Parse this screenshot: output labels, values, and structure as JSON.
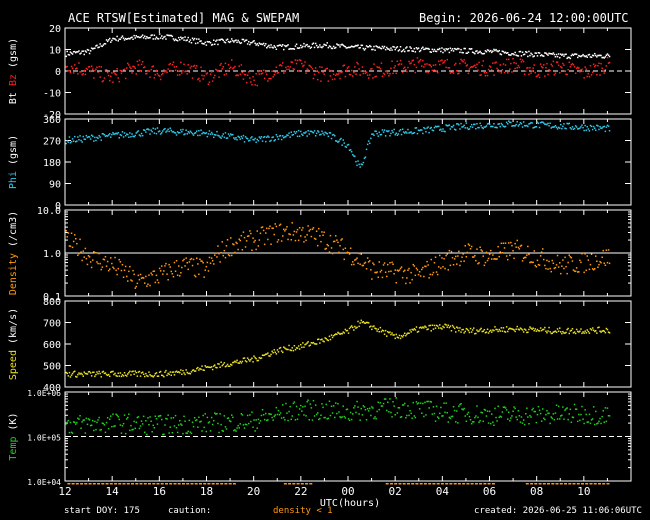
{
  "header": {
    "title": "ACE RTSW[Estimated] MAG & SWEPAM",
    "begin": "Begin: 2026-06-24 12:00:00UTC"
  },
  "footer": {
    "start_doy": "start DOY: 175",
    "caution": "caution:",
    "density_note": "density < 1",
    "created": "created: 2026-06-25 11:06:06UTC"
  },
  "colors": {
    "bt": "#ffffff",
    "bz": "#ff2020",
    "phi": "#30c8e8",
    "density": "#ff9a10",
    "speed": "#e8e020",
    "temp": "#20d020",
    "axes": "#ffffff",
    "caution": "#ff9a10"
  },
  "chart_data": {
    "type": "scatter",
    "xlabel": "UTC(hours)",
    "x_ticks": [
      "12",
      "14",
      "16",
      "18",
      "20",
      "22",
      "00",
      "02",
      "04",
      "06",
      "08",
      "10"
    ],
    "x_range_hours": [
      12,
      36
    ],
    "panels": [
      {
        "id": "mag",
        "ylabel_parts": [
          {
            "text": "Bt",
            "color_key": "bt"
          },
          {
            "text": "Bz",
            "color_key": "bz"
          },
          {
            "text": "(gsm)",
            "color_key": "axes"
          }
        ],
        "scale": "linear",
        "ylim": [
          -20,
          20
        ],
        "ticks": [
          "20",
          "10",
          "0",
          "-10",
          "-20"
        ],
        "tick_values": [
          20,
          10,
          0,
          -10,
          -20
        ],
        "ref_line": 0,
        "series": [
          {
            "color_key": "bt",
            "approx_trace": [
              [
                12,
                8
              ],
              [
                13,
                9
              ],
              [
                14,
                15
              ],
              [
                16,
                16
              ],
              [
                17,
                15
              ],
              [
                18,
                13
              ],
              [
                19,
                14
              ],
              [
                20,
                13
              ],
              [
                21,
                11
              ],
              [
                23,
                12
              ],
              [
                24,
                11
              ],
              [
                27,
                10
              ],
              [
                30,
                9
              ],
              [
                33,
                7
              ],
              [
                35,
                7
              ]
            ]
          },
          {
            "color_key": "bz",
            "approx_trace": [
              [
                12,
                3
              ],
              [
                13,
                0
              ],
              [
                14,
                -3
              ],
              [
                15,
                2
              ],
              [
                16,
                -1
              ],
              [
                17,
                2
              ],
              [
                18,
                -3
              ],
              [
                19,
                2
              ],
              [
                20,
                -4
              ],
              [
                21,
                1
              ],
              [
                22,
                2
              ],
              [
                23,
                -2
              ],
              [
                24,
                1
              ],
              [
                25,
                0
              ],
              [
                27,
                3
              ],
              [
                29,
                2
              ],
              [
                30,
                1
              ],
              [
                31,
                3
              ],
              [
                32,
                0
              ],
              [
                33,
                2
              ],
              [
                34,
                -1
              ],
              [
                35,
                3
              ]
            ]
          }
        ]
      },
      {
        "id": "phi",
        "ylabel_parts": [
          {
            "text": "Phi",
            "color_key": "phi"
          },
          {
            "text": "(gsm)",
            "color_key": "axes"
          }
        ],
        "scale": "linear",
        "ylim": [
          0,
          360
        ],
        "ticks": [
          "360",
          "270",
          "180",
          "90",
          "0"
        ],
        "tick_values": [
          360,
          270,
          180,
          90,
          0
        ],
        "series": [
          {
            "color_key": "phi",
            "approx_trace": [
              [
                12,
                270
              ],
              [
                14,
                290
              ],
              [
                16,
                310
              ],
              [
                18,
                300
              ],
              [
                20,
                270
              ],
              [
                22,
                300
              ],
              [
                23,
                300
              ],
              [
                24,
                250
              ],
              [
                24.5,
                150
              ],
              [
                25,
                300
              ],
              [
                27,
                310
              ],
              [
                29,
                330
              ],
              [
                31,
                340
              ],
              [
                33,
                330
              ],
              [
                35,
                320
              ]
            ]
          }
        ]
      },
      {
        "id": "density",
        "ylabel_parts": [
          {
            "text": "Density",
            "color_key": "density"
          },
          {
            "text": "(/cm3)",
            "color_key": "axes"
          }
        ],
        "scale": "log",
        "ylim": [
          0.1,
          10
        ],
        "ticks": [
          "10.0",
          "1.0",
          "0.1"
        ],
        "tick_values": [
          10,
          1,
          0.1
        ],
        "ref_line": 1,
        "series": [
          {
            "color_key": "density",
            "approx_trace": [
              [
                12,
                2
              ],
              [
                13,
                0.8
              ],
              [
                14,
                0.5
              ],
              [
                15,
                0.2
              ],
              [
                16,
                0.3
              ],
              [
                17,
                0.5
              ],
              [
                18,
                0.4
              ],
              [
                19,
                1.5
              ],
              [
                20,
                2
              ],
              [
                21,
                3
              ],
              [
                22,
                3
              ],
              [
                23,
                2
              ],
              [
                24,
                1
              ],
              [
                25,
                0.4
              ],
              [
                27,
                0.3
              ],
              [
                28,
                0.6
              ],
              [
                29,
                1
              ],
              [
                30,
                0.8
              ],
              [
                31,
                1.2
              ],
              [
                32,
                0.8
              ],
              [
                33,
                0.5
              ],
              [
                34,
                0.6
              ],
              [
                35,
                0.8
              ]
            ]
          }
        ]
      },
      {
        "id": "speed",
        "ylabel_parts": [
          {
            "text": "Speed",
            "color_key": "speed"
          },
          {
            "text": "(km/s)",
            "color_key": "axes"
          }
        ],
        "scale": "linear",
        "ylim": [
          400,
          800
        ],
        "ticks": [
          "800",
          "700",
          "600",
          "500",
          "400"
        ],
        "tick_values": [
          800,
          700,
          600,
          500,
          400
        ],
        "series": [
          {
            "color_key": "speed",
            "approx_trace": [
              [
                12,
                460
              ],
              [
                14,
                460
              ],
              [
                16,
                460
              ],
              [
                17,
                470
              ],
              [
                18,
                490
              ],
              [
                19,
                510
              ],
              [
                20,
                530
              ],
              [
                21,
                570
              ],
              [
                22,
                590
              ],
              [
                23,
                620
              ],
              [
                24,
                660
              ],
              [
                24.5,
                700
              ],
              [
                25,
                680
              ],
              [
                26,
                630
              ],
              [
                27,
                670
              ],
              [
                28,
                680
              ],
              [
                29,
                660
              ],
              [
                31,
                670
              ],
              [
                33,
                660
              ],
              [
                35,
                665
              ]
            ]
          }
        ]
      },
      {
        "id": "temp",
        "ylabel_parts": [
          {
            "text": "Temp",
            "color_key": "temp"
          },
          {
            "text": "(K)",
            "color_key": "axes"
          }
        ],
        "scale": "log",
        "ylim": [
          10000,
          1000000
        ],
        "ticks": [
          "1.0E+06",
          "1.0E+05",
          "1.0E+04"
        ],
        "tick_values": [
          1000000,
          100000,
          10000
        ],
        "ref_line": 100000,
        "series": [
          {
            "color_key": "temp",
            "approx_trace": [
              [
                12,
                180000
              ],
              [
                14,
                200000
              ],
              [
                16,
                180000
              ],
              [
                18,
                200000
              ],
              [
                20,
                220000
              ],
              [
                22,
                400000
              ],
              [
                24,
                350000
              ],
              [
                26,
                450000
              ],
              [
                28,
                350000
              ],
              [
                30,
                300000
              ],
              [
                32,
                300000
              ],
              [
                34,
                320000
              ],
              [
                35,
                300000
              ]
            ]
          }
        ]
      }
    ]
  }
}
